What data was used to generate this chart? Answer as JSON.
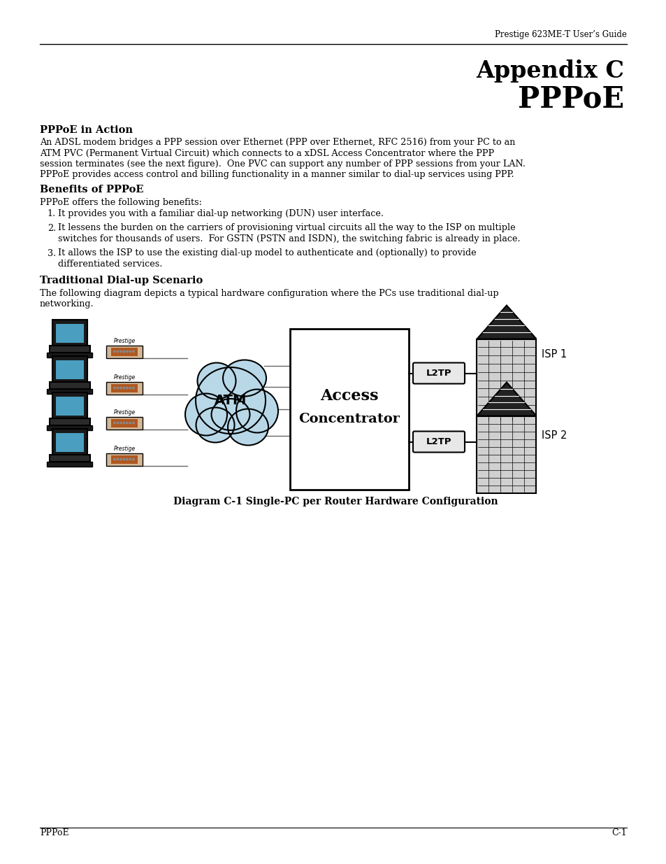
{
  "header_text": "Prestige 623ME-T User’s Guide",
  "title_line1": "Appendix C",
  "title_line2": "PPPoE",
  "section1_heading": "PPPoE in Action",
  "section1_body_lines": [
    "An ADSL modem bridges a PPP session over Ethernet (PPP over Ethernet, RFC 2516) from your PC to an",
    "ATM PVC (Permanent Virtual Circuit) which connects to a xDSL Access Concentrator where the PPP",
    "session terminates (see the next figure).  One PVC can support any number of PPP sessions from your LAN.",
    "PPPoE provides access control and billing functionality in a manner similar to dial-up services using PPP."
  ],
  "section2_heading": "Benefits of PPPoE",
  "section2_intro": "PPPoE offers the following benefits:",
  "section2_item1_lines": [
    "It provides you with a familiar dial-up networking (DUN) user interface."
  ],
  "section2_item2_lines": [
    "It lessens the burden on the carriers of provisioning virtual circuits all the way to the ISP on multiple",
    "switches for thousands of users.  For GSTN (PSTN and ISDN), the switching fabric is already in place."
  ],
  "section2_item3_lines": [
    "It allows the ISP to use the existing dial-up model to authenticate and (optionally) to provide",
    "differentiated services."
  ],
  "section3_heading": "Traditional Dial-up Scenario",
  "section3_body_lines": [
    "The following diagram depicts a typical hardware configuration where the PCs use traditional dial-up",
    "networking."
  ],
  "diagram_caption": "Diagram C-1 Single-PC per Router Hardware Configuration",
  "footer_left": "PPPoE",
  "footer_right": "C-1",
  "bg_color": "#ffffff",
  "text_color": "#000000",
  "atm_cloud_color": "#b8d8e8",
  "l2tp_bg": "#e8e8e8"
}
